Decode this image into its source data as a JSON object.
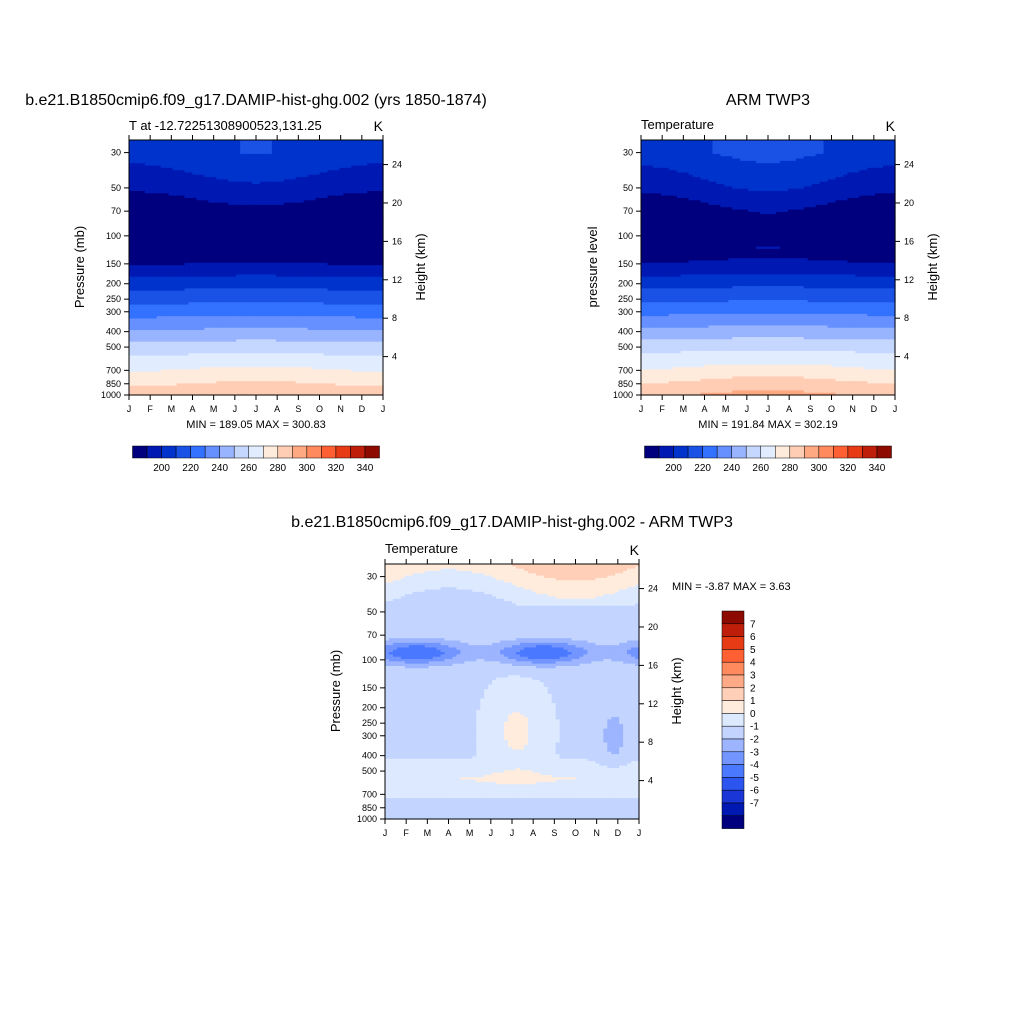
{
  "colors": {
    "abs_palette": [
      "#00007f",
      "#0019b3",
      "#0033cc",
      "#1a52e6",
      "#3371ff",
      "#6690ff",
      "#99b4ff",
      "#c5d7ff",
      "#e2ecff",
      "#ffebdc",
      "#ffcdb4",
      "#ffa982",
      "#ff8a5e",
      "#ff6033",
      "#e63b14",
      "#bf1f0a",
      "#8c0a00"
    ],
    "diff_palette": [
      "#00007f",
      "#0019b3",
      "#1a36d6",
      "#2b55ee",
      "#4a78ff",
      "#7295ff",
      "#9db5ff",
      "#c3d5ff",
      "#dce9ff",
      "#ffecdd",
      "#ffcfb8",
      "#ffaa87",
      "#ff8a5e",
      "#ff6033",
      "#e63b14",
      "#bf1f0a",
      "#8c0a00"
    ]
  },
  "panels": {
    "model": {
      "title": "b.e21.B1850cmip6.f09_g17.DAMIP-hist-ghg.002 (yrs 1850-1874)",
      "left_label": "T at -12.72251308900523,131.25",
      "right_label": "K",
      "ylabel": "Pressure (mb)",
      "ylabel_right": "Height (km)",
      "minmax": "MIN = 189.05 MAX = 300.83"
    },
    "obs": {
      "title": "ARM TWP3",
      "left_label": "Temperature",
      "right_label": "K",
      "ylabel": "pressure level",
      "ylabel_right": "Height (km)",
      "minmax": "MIN = 191.84 MAX = 302.19"
    },
    "diff": {
      "title": "b.e21.B1850cmip6.f09_g17.DAMIP-hist-ghg.002 - ARM TWP3",
      "left_label": "Temperature",
      "right_label": "K",
      "ylabel": "Pressure (mb)",
      "ylabel_right": "Height (km)",
      "minmax": "MIN =  -3.87 MAX =   3.63"
    }
  },
  "chart_data": [
    {
      "type": "heatmap",
      "name_printed": "b.e21.B1850cmip6.f09_g17.DAMIP-hist-ghg.002 (yrs 1850-1874)",
      "variable": "T at -12.72251308900523,131.25",
      "units": "K",
      "x_ticks": [
        "J",
        "F",
        "M",
        "A",
        "M",
        "J",
        "J",
        "A",
        "S",
        "O",
        "N",
        "D",
        "J"
      ],
      "y_pressure_ticks": [
        30,
        50,
        70,
        100,
        150,
        200,
        250,
        300,
        400,
        500,
        700,
        850,
        1000
      ],
      "y_pressure_scale": "log",
      "y_height_ticks": [
        4,
        8,
        12,
        16,
        20,
        24
      ],
      "colorbar_labels": [
        200,
        220,
        240,
        260,
        280,
        300,
        320,
        340
      ],
      "colorbar_levels": [
        195,
        200,
        205,
        210,
        215,
        220,
        225,
        230,
        235,
        240,
        245,
        250,
        255,
        260,
        265,
        270,
        275,
        280,
        285,
        290,
        295,
        300,
        305,
        310,
        315,
        320,
        325,
        330,
        335,
        340,
        345
      ],
      "profile_levels_mb": [
        30,
        50,
        70,
        100,
        150,
        200,
        250,
        300,
        400,
        500,
        700,
        850,
        1000
      ],
      "profile_temperature_K": [
        217,
        205,
        194,
        190,
        200,
        216,
        227,
        236,
        252,
        265,
        281,
        290,
        299
      ],
      "min": 189.05,
      "max": 300.83
    },
    {
      "type": "heatmap",
      "name_printed": "ARM TWP3",
      "variable": "Temperature",
      "units": "K",
      "x_ticks": [
        "J",
        "F",
        "M",
        "A",
        "M",
        "J",
        "J",
        "A",
        "S",
        "O",
        "N",
        "D",
        "J"
      ],
      "y_pressure_ticks": [
        30,
        50,
        70,
        100,
        150,
        200,
        250,
        300,
        400,
        500,
        700,
        850,
        1000
      ],
      "y_pressure_scale": "log",
      "y_height_ticks": [
        4,
        8,
        12,
        16,
        20,
        24
      ],
      "colorbar_labels": [
        200,
        220,
        240,
        260,
        280,
        300,
        320,
        340
      ],
      "profile_levels_mb": [
        30,
        50,
        70,
        100,
        150,
        200,
        250,
        300,
        400,
        500,
        700,
        850,
        1000
      ],
      "profile_temperature_K": [
        219,
        207,
        196,
        192,
        201,
        217,
        228,
        238,
        254,
        267,
        283,
        293,
        301
      ],
      "min": 191.84,
      "max": 302.19
    },
    {
      "type": "heatmap",
      "name_printed": "b.e21.B1850cmip6.f09_g17.DAMIP-hist-ghg.002 - ARM TWP3",
      "variable": "Temperature",
      "units": "K",
      "x_ticks": [
        "J",
        "F",
        "M",
        "A",
        "M",
        "J",
        "J",
        "A",
        "S",
        "O",
        "N",
        "D",
        "J"
      ],
      "y_pressure_ticks": [
        30,
        50,
        70,
        100,
        150,
        200,
        250,
        300,
        400,
        500,
        700,
        850,
        1000
      ],
      "y_pressure_scale": "log",
      "y_height_ticks": [
        4,
        8,
        12,
        16,
        20,
        24
      ],
      "colorbar_labels": [
        7,
        6,
        5,
        4,
        3,
        2,
        1,
        0,
        -1,
        -2,
        -3,
        -4,
        -5,
        -6,
        -7
      ],
      "min": -3.87,
      "max": 3.63
    }
  ]
}
